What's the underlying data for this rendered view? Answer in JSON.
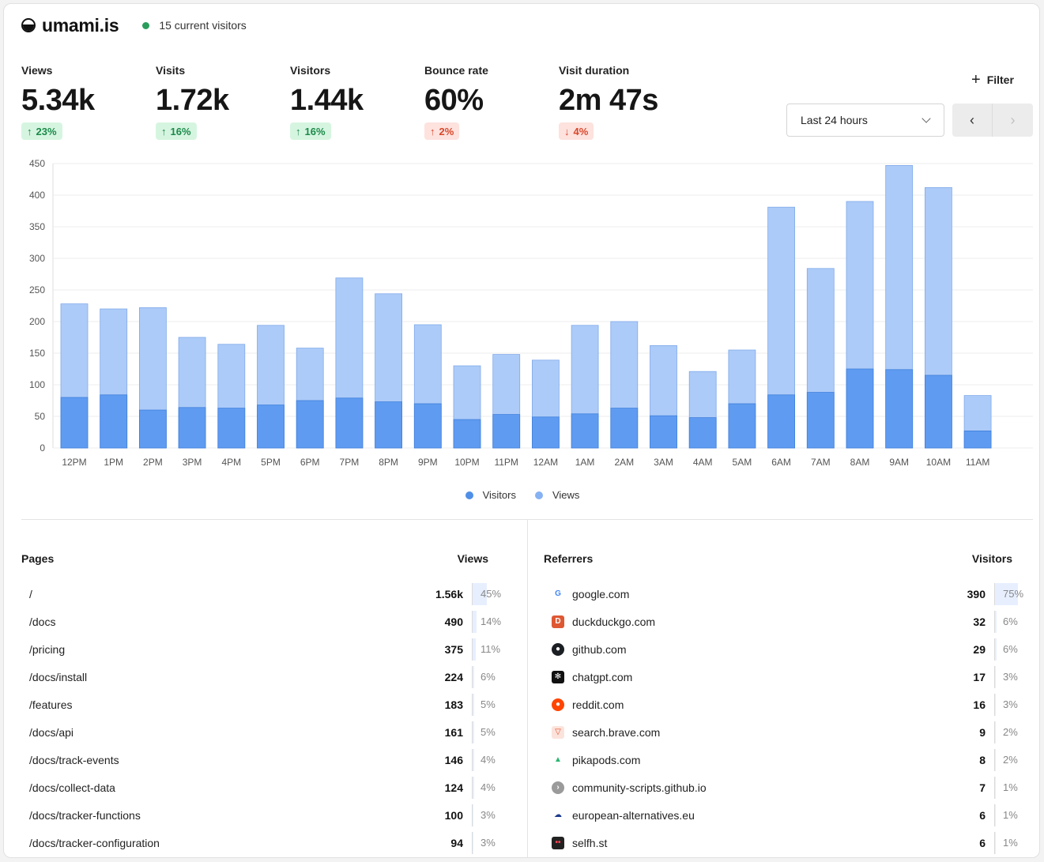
{
  "header": {
    "site_name": "umami.is",
    "current_visitors": "15 current visitors"
  },
  "metrics": [
    {
      "label": "Views",
      "value": "5.34k",
      "change": "23%",
      "direction": "up"
    },
    {
      "label": "Visits",
      "value": "1.72k",
      "change": "16%",
      "direction": "up"
    },
    {
      "label": "Visitors",
      "value": "1.44k",
      "change": "16%",
      "direction": "up"
    },
    {
      "label": "Bounce rate",
      "value": "60%",
      "change": "2%",
      "direction": "up-bad"
    },
    {
      "label": "Visit duration",
      "value": "2m 47s",
      "change": "4%",
      "direction": "down"
    }
  ],
  "controls": {
    "filter_label": "Filter",
    "date_range": "Last 24 hours"
  },
  "colors": {
    "visitors": "#5b9bef",
    "views": "#a9c9f8",
    "positive": "#1b8a4a",
    "negative": "#d9472b"
  },
  "chart_data": {
    "type": "bar",
    "stacked": "overlay",
    "categories": [
      "12PM",
      "1PM",
      "2PM",
      "3PM",
      "4PM",
      "5PM",
      "6PM",
      "7PM",
      "8PM",
      "9PM",
      "10PM",
      "11PM",
      "12AM",
      "1AM",
      "2AM",
      "3AM",
      "4AM",
      "5AM",
      "6AM",
      "7AM",
      "8AM",
      "9AM",
      "10AM",
      "11AM"
    ],
    "series": [
      {
        "name": "Visitors",
        "values": [
          80,
          84,
          60,
          64,
          63,
          68,
          75,
          79,
          73,
          70,
          45,
          53,
          49,
          54,
          63,
          51,
          48,
          70,
          84,
          88,
          125,
          124,
          115,
          27
        ]
      },
      {
        "name": "Views",
        "values": [
          228,
          220,
          222,
          175,
          164,
          194,
          158,
          269,
          244,
          195,
          130,
          148,
          139,
          194,
          200,
          162,
          121,
          155,
          381,
          284,
          390,
          447,
          412,
          83
        ]
      }
    ],
    "yticks": [
      "0",
      "50",
      "100",
      "150",
      "200",
      "250",
      "300",
      "350",
      "400",
      "450"
    ],
    "ylim": [
      0,
      450
    ],
    "grid": true,
    "legend_position": "bottom-center"
  },
  "pages": {
    "title": "Pages",
    "column": "Views",
    "rows": [
      {
        "label": "/",
        "value": "1.56k",
        "pct": "45%",
        "share": 0.45
      },
      {
        "label": "/docs",
        "value": "490",
        "pct": "14%",
        "share": 0.14
      },
      {
        "label": "/pricing",
        "value": "375",
        "pct": "11%",
        "share": 0.11
      },
      {
        "label": "/docs/install",
        "value": "224",
        "pct": "6%",
        "share": 0.06
      },
      {
        "label": "/features",
        "value": "183",
        "pct": "5%",
        "share": 0.05
      },
      {
        "label": "/docs/api",
        "value": "161",
        "pct": "5%",
        "share": 0.05
      },
      {
        "label": "/docs/track-events",
        "value": "146",
        "pct": "4%",
        "share": 0.04
      },
      {
        "label": "/docs/collect-data",
        "value": "124",
        "pct": "4%",
        "share": 0.04
      },
      {
        "label": "/docs/tracker-functions",
        "value": "100",
        "pct": "3%",
        "share": 0.03
      },
      {
        "label": "/docs/tracker-configuration",
        "value": "94",
        "pct": "3%",
        "share": 0.03
      }
    ]
  },
  "referrers": {
    "title": "Referrers",
    "column": "Visitors",
    "rows": [
      {
        "label": "google.com",
        "value": "390",
        "pct": "75%",
        "share": 0.75,
        "icon": "google-icon"
      },
      {
        "label": "duckduckgo.com",
        "value": "32",
        "pct": "6%",
        "share": 0.06,
        "icon": "duckduckgo-icon"
      },
      {
        "label": "github.com",
        "value": "29",
        "pct": "6%",
        "share": 0.06,
        "icon": "github-icon"
      },
      {
        "label": "chatgpt.com",
        "value": "17",
        "pct": "3%",
        "share": 0.03,
        "icon": "chatgpt-icon"
      },
      {
        "label": "reddit.com",
        "value": "16",
        "pct": "3%",
        "share": 0.03,
        "icon": "reddit-icon"
      },
      {
        "label": "search.brave.com",
        "value": "9",
        "pct": "2%",
        "share": 0.02,
        "icon": "brave-icon"
      },
      {
        "label": "pikapods.com",
        "value": "8",
        "pct": "2%",
        "share": 0.02,
        "icon": "pikapods-icon"
      },
      {
        "label": "community-scripts.github.io",
        "value": "7",
        "pct": "1%",
        "share": 0.01,
        "icon": "community-scripts-icon"
      },
      {
        "label": "european-alternatives.eu",
        "value": "6",
        "pct": "1%",
        "share": 0.01,
        "icon": "european-alternatives-icon"
      },
      {
        "label": "selfh.st",
        "value": "6",
        "pct": "1%",
        "share": 0.01,
        "icon": "selfhst-icon"
      }
    ]
  }
}
